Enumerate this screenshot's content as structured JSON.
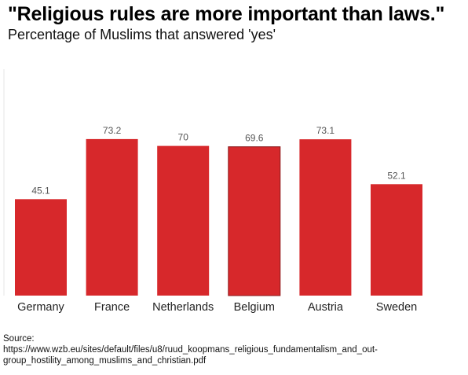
{
  "title": "\"Religious rules are more important than laws.\"",
  "subtitle": "Percentage of Muslims that answered 'yes'",
  "source": {
    "label": "Source:",
    "url_line1": "https://www.wzb.eu/sites/default/files/u8/ruud_koopmans_religious_fundamentalism_and_out-",
    "url_line2": "group_hostility_among_muslims_and_christian.pdf"
  },
  "colors": {
    "bar": "#d7282b",
    "bar_outline": "#8b1a1c",
    "value_label": "#555555",
    "category_label": "#222222"
  },
  "chart_data": {
    "type": "bar",
    "categories": [
      "Germany",
      "France",
      "Netherlands",
      "Belgium",
      "Austria",
      "Sweden"
    ],
    "values": [
      45.1,
      73.2,
      70,
      69.6,
      73.1,
      52.1
    ],
    "value_labels": [
      "45.1",
      "73.2",
      "70",
      "69.6",
      "73.1",
      "52.1"
    ],
    "highlighted_index": 3,
    "ylim": [
      0,
      100
    ],
    "grid": false,
    "legend": "none"
  }
}
